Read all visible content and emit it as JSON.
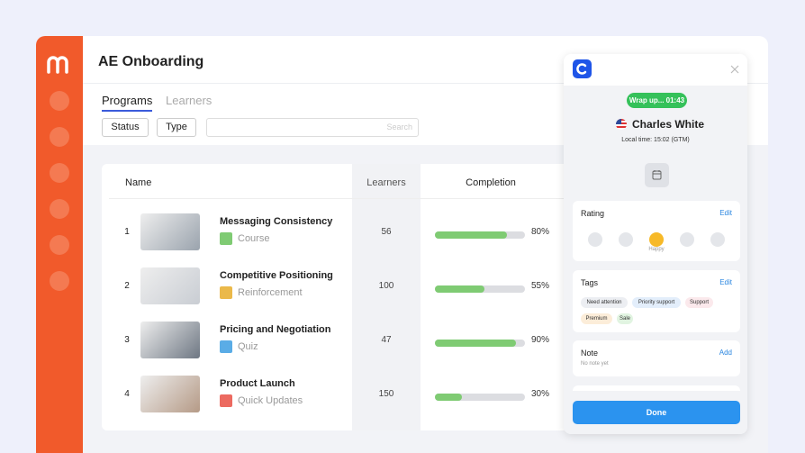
{
  "app": {
    "title": "AE Onboarding",
    "tabs": [
      "Programs",
      "Learners"
    ],
    "filters": [
      "Status",
      "Type"
    ],
    "search_placeholder": "Search"
  },
  "table": {
    "columns": [
      "Name",
      "Learners",
      "Completion"
    ],
    "rows": [
      {
        "index": 1,
        "name": "Messaging Consistency",
        "type": "Course",
        "type_color": "#7fcb73",
        "learners": 56,
        "completion": {
          "value": 80,
          "label": "80%"
        }
      },
      {
        "index": 2,
        "name": "Competitive Positioning",
        "type": "Reinforcement",
        "type_color": "#ebb94a",
        "learners": 100,
        "completion": {
          "value": 55,
          "label": "55%"
        }
      },
      {
        "index": 3,
        "name": "Pricing and Negotiation",
        "type": "Quiz",
        "type_color": "#5aace6",
        "learners": 47,
        "completion": {
          "value": 90,
          "label": "90%"
        }
      },
      {
        "index": 4,
        "name": "Product Launch",
        "type": "Quick Updates",
        "type_color": "#ec6a60",
        "learners": 150,
        "completion": {
          "value": 30,
          "label": "30%"
        }
      }
    ]
  },
  "panel": {
    "timer": "Wrap up... 01:43",
    "contact": "Charles White",
    "local_time": "Local time: 15:02 (GTM)",
    "rating": {
      "title": "Rating",
      "action": "Edit",
      "selected": "Happy"
    },
    "tags": {
      "title": "Tags",
      "action": "Edit",
      "items": [
        {
          "label": "Need attention",
          "color": "#eceef2"
        },
        {
          "label": "Priority support",
          "color": "#e3eefb"
        },
        {
          "label": "Support",
          "color": "#fbe9ec"
        },
        {
          "label": "Premium",
          "color": "#fcedd9"
        },
        {
          "label": "Sale",
          "color": "#e1f4e1"
        }
      ]
    },
    "note": {
      "title": "Note",
      "action": "Add",
      "text": "No note yet"
    },
    "button": "Done"
  }
}
